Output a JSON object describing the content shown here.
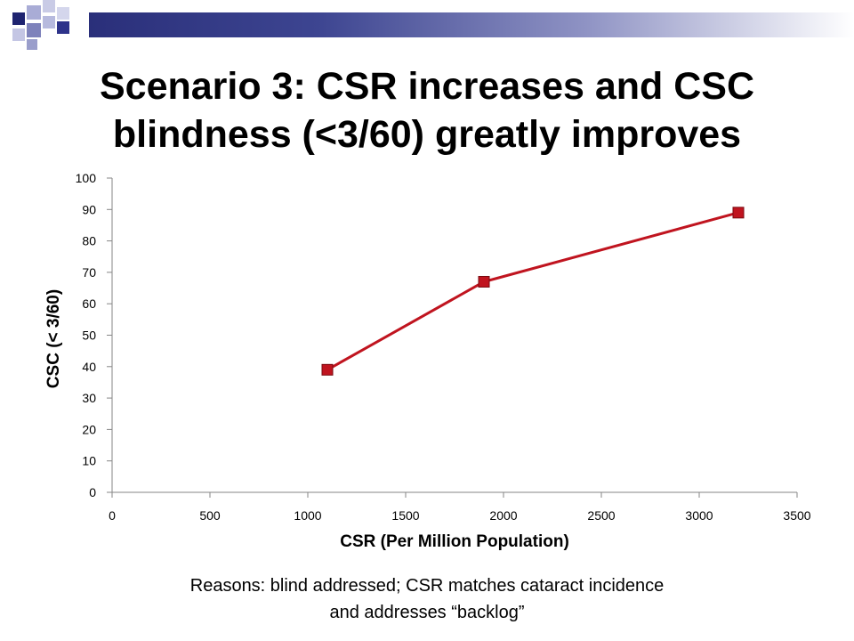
{
  "slide": {
    "title_line1": "Scenario 3: CSR increases and CSC",
    "title_line2": "blindness (<3/60) greatly improves",
    "footnote_line1": "Reasons: blind addressed; CSR matches cataract incidence",
    "footnote_line2": "and addresses “backlog”",
    "accent_color": "#2a2f7a"
  },
  "chart_data": {
    "type": "line",
    "title": "",
    "xlabel": "CSR (Per Million Population)",
    "ylabel": "CSC (< 3/60)",
    "xlim": [
      0,
      3500
    ],
    "ylim": [
      0,
      100
    ],
    "xticks": [
      0,
      500,
      1000,
      1500,
      2000,
      2500,
      3000,
      3500
    ],
    "yticks": [
      0,
      10,
      20,
      30,
      40,
      50,
      60,
      70,
      80,
      90,
      100
    ],
    "grid": false,
    "legend": "none",
    "series": [
      {
        "color": "#c0141f",
        "marker": "square",
        "points": [
          {
            "x": 1100,
            "y": 39
          },
          {
            "x": 1900,
            "y": 67
          },
          {
            "x": 3200,
            "y": 89
          }
        ]
      }
    ]
  }
}
